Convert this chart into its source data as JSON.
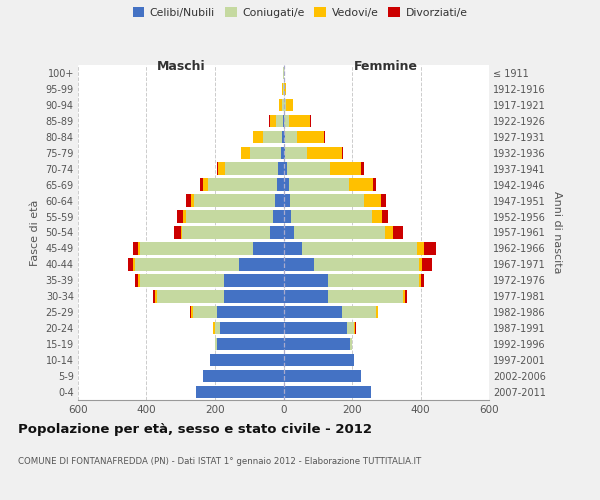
{
  "age_groups": [
    "0-4",
    "5-9",
    "10-14",
    "15-19",
    "20-24",
    "25-29",
    "30-34",
    "35-39",
    "40-44",
    "45-49",
    "50-54",
    "55-59",
    "60-64",
    "65-69",
    "70-74",
    "75-79",
    "80-84",
    "85-89",
    "90-94",
    "95-99",
    "100+"
  ],
  "birth_years": [
    "2007-2011",
    "2002-2006",
    "1997-2001",
    "1992-1996",
    "1987-1991",
    "1982-1986",
    "1977-1981",
    "1972-1976",
    "1967-1971",
    "1962-1966",
    "1957-1961",
    "1952-1956",
    "1947-1951",
    "1942-1946",
    "1937-1941",
    "1932-1936",
    "1927-1931",
    "1922-1926",
    "1917-1921",
    "1912-1916",
    "≤ 1911"
  ],
  "male": {
    "celibi": [
      255,
      235,
      215,
      195,
      185,
      195,
      175,
      175,
      130,
      90,
      40,
      30,
      25,
      20,
      15,
      8,
      5,
      2,
      0,
      0,
      0
    ],
    "coniugati": [
      0,
      0,
      0,
      5,
      15,
      70,
      195,
      245,
      305,
      330,
      255,
      255,
      235,
      200,
      155,
      90,
      55,
      20,
      5,
      2,
      1
    ],
    "vedovi": [
      0,
      0,
      0,
      0,
      5,
      5,
      5,
      5,
      5,
      5,
      5,
      8,
      10,
      15,
      20,
      25,
      28,
      18,
      8,
      2,
      0
    ],
    "divorziati": [
      0,
      0,
      0,
      0,
      2,
      2,
      5,
      10,
      15,
      15,
      20,
      18,
      15,
      10,
      5,
      2,
      2,
      2,
      0,
      0,
      0
    ]
  },
  "female": {
    "nubili": [
      255,
      225,
      205,
      195,
      185,
      170,
      130,
      130,
      90,
      55,
      30,
      22,
      20,
      15,
      10,
      5,
      3,
      2,
      2,
      0,
      0
    ],
    "coniugate": [
      0,
      0,
      0,
      5,
      20,
      100,
      220,
      265,
      305,
      335,
      265,
      235,
      215,
      175,
      125,
      65,
      35,
      15,
      5,
      2,
      1
    ],
    "vedove": [
      0,
      0,
      0,
      0,
      5,
      5,
      5,
      5,
      10,
      20,
      25,
      30,
      50,
      70,
      90,
      100,
      80,
      60,
      20,
      5,
      1
    ],
    "divorziate": [
      0,
      0,
      0,
      0,
      2,
      2,
      5,
      10,
      30,
      35,
      30,
      18,
      15,
      10,
      10,
      5,
      2,
      2,
      0,
      0,
      0
    ]
  },
  "colors": {
    "celibi": "#4472c4",
    "coniugati": "#c5d9a0",
    "vedovi": "#ffc000",
    "divorziati": "#cc0000"
  },
  "xlim": 600,
  "title": "Popolazione per età, sesso e stato civile - 2012",
  "subtitle": "COMUNE DI FONTANAFREDDA (PN) - Dati ISTAT 1° gennaio 2012 - Elaborazione TUTTITALIA.IT",
  "ylabel_left": "Fasce di età",
  "ylabel_right": "Anni di nascita",
  "xlabel_left": "Maschi",
  "xlabel_right": "Femmine",
  "bg_color": "#f0f0f0",
  "plot_bg": "#ffffff",
  "grid_color": "#cccccc"
}
